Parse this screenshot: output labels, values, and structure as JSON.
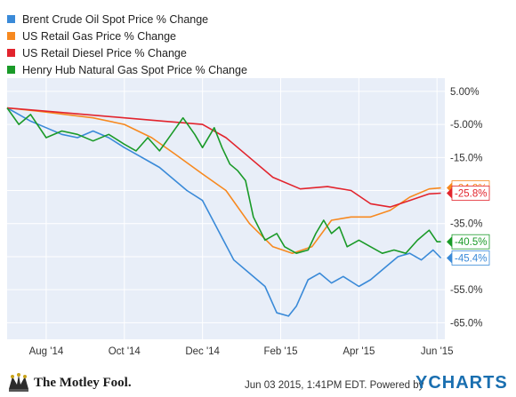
{
  "chart_data": {
    "type": "line",
    "title": "",
    "xlabel": "",
    "ylabel": "",
    "x_tick_labels": [
      "Aug '14",
      "Oct '14",
      "Dec '14",
      "Feb '15",
      "Apr '15",
      "Jun '15"
    ],
    "y_tick_labels": [
      "5.00%",
      "-5.00%",
      "-15.0%",
      "-25.0%",
      "-35.0%",
      "-45.0%",
      "-55.0%",
      "-65.0%"
    ],
    "y_ticks": [
      5,
      -5,
      -15,
      -25,
      -35,
      -45,
      -55,
      -65
    ],
    "ylim": [
      -70,
      9
    ],
    "x_range_months": [
      0,
      11.2
    ],
    "grid": true,
    "legend_position": "top-left",
    "series": [
      {
        "name": "Brent Crude Oil Spot Price % Change",
        "color": "#3a8ad8",
        "end_label": "-45.4%",
        "points": [
          [
            0,
            0
          ],
          [
            0.3,
            -2
          ],
          [
            0.6,
            -4
          ],
          [
            1,
            -6
          ],
          [
            1.4,
            -8
          ],
          [
            1.8,
            -9
          ],
          [
            2.2,
            -7
          ],
          [
            2.6,
            -9
          ],
          [
            3,
            -12
          ],
          [
            3.3,
            -14
          ],
          [
            3.6,
            -16
          ],
          [
            3.9,
            -18
          ],
          [
            4.3,
            -22
          ],
          [
            4.6,
            -25
          ],
          [
            5,
            -28
          ],
          [
            5.4,
            -37
          ],
          [
            5.8,
            -46
          ],
          [
            6.2,
            -50
          ],
          [
            6.6,
            -54
          ],
          [
            6.9,
            -62
          ],
          [
            7.2,
            -63
          ],
          [
            7.4,
            -60
          ],
          [
            7.7,
            -52
          ],
          [
            8,
            -50
          ],
          [
            8.3,
            -53
          ],
          [
            8.6,
            -51
          ],
          [
            9,
            -54
          ],
          [
            9.3,
            -52
          ],
          [
            9.7,
            -48
          ],
          [
            10,
            -45
          ],
          [
            10.3,
            -44
          ],
          [
            10.6,
            -46
          ],
          [
            10.9,
            -43
          ],
          [
            11.1,
            -45.4
          ]
        ]
      },
      {
        "name": "US Retail Gas Price % Change",
        "color": "#f7891f",
        "end_label": "-24.2%",
        "points": [
          [
            0,
            0
          ],
          [
            0.8,
            -1
          ],
          [
            1.5,
            -2
          ],
          [
            2.2,
            -3
          ],
          [
            3,
            -5
          ],
          [
            3.7,
            -9
          ],
          [
            4.3,
            -14
          ],
          [
            5,
            -20
          ],
          [
            5.6,
            -25
          ],
          [
            6.2,
            -35
          ],
          [
            6.8,
            -42
          ],
          [
            7.3,
            -44
          ],
          [
            7.8,
            -42
          ],
          [
            8.3,
            -34
          ],
          [
            8.8,
            -33
          ],
          [
            9.3,
            -33
          ],
          [
            9.8,
            -31
          ],
          [
            10.3,
            -27
          ],
          [
            10.8,
            -24.5
          ],
          [
            11.1,
            -24.2
          ]
        ]
      },
      {
        "name": "US Retail Diesel Price % Change",
        "color": "#e2242d",
        "end_label": "-25.8%",
        "points": [
          [
            0,
            0
          ],
          [
            1,
            -1
          ],
          [
            2,
            -2
          ],
          [
            3,
            -3
          ],
          [
            4,
            -4
          ],
          [
            5,
            -5
          ],
          [
            5.6,
            -9
          ],
          [
            6.2,
            -15
          ],
          [
            6.8,
            -21
          ],
          [
            7.5,
            -24.5
          ],
          [
            8.2,
            -23.8
          ],
          [
            8.8,
            -25
          ],
          [
            9.3,
            -29
          ],
          [
            9.8,
            -30
          ],
          [
            10.3,
            -28
          ],
          [
            10.8,
            -26
          ],
          [
            11.1,
            -25.8
          ]
        ]
      },
      {
        "name": "Henry Hub Natural Gas Spot Price % Change",
        "color": "#1a9a28",
        "end_label": "-40.5%",
        "points": [
          [
            0,
            0
          ],
          [
            0.3,
            -5
          ],
          [
            0.6,
            -2
          ],
          [
            1,
            -9
          ],
          [
            1.4,
            -7
          ],
          [
            1.8,
            -8
          ],
          [
            2.2,
            -10
          ],
          [
            2.6,
            -8
          ],
          [
            3,
            -11
          ],
          [
            3.3,
            -13
          ],
          [
            3.6,
            -9
          ],
          [
            3.9,
            -13
          ],
          [
            4.2,
            -8
          ],
          [
            4.5,
            -3
          ],
          [
            4.8,
            -8
          ],
          [
            5,
            -12
          ],
          [
            5.3,
            -6
          ],
          [
            5.5,
            -12
          ],
          [
            5.7,
            -17
          ],
          [
            5.9,
            -19
          ],
          [
            6.1,
            -22
          ],
          [
            6.3,
            -33
          ],
          [
            6.6,
            -40
          ],
          [
            6.9,
            -38
          ],
          [
            7.1,
            -42
          ],
          [
            7.4,
            -44
          ],
          [
            7.7,
            -43
          ],
          [
            7.9,
            -38
          ],
          [
            8.1,
            -34
          ],
          [
            8.3,
            -38
          ],
          [
            8.5,
            -36
          ],
          [
            8.7,
            -42
          ],
          [
            9,
            -40
          ],
          [
            9.3,
            -42
          ],
          [
            9.6,
            -44
          ],
          [
            9.9,
            -43
          ],
          [
            10.2,
            -44
          ],
          [
            10.5,
            -40
          ],
          [
            10.8,
            -37
          ],
          [
            11,
            -40.5
          ],
          [
            11.1,
            -40.5
          ]
        ]
      }
    ]
  },
  "footer": {
    "brand": "The Motley Fool.",
    "timestamp": "Jun 03 2015, 1:41PM EDT.  Powered by",
    "ycharts": "YCHARTS"
  }
}
